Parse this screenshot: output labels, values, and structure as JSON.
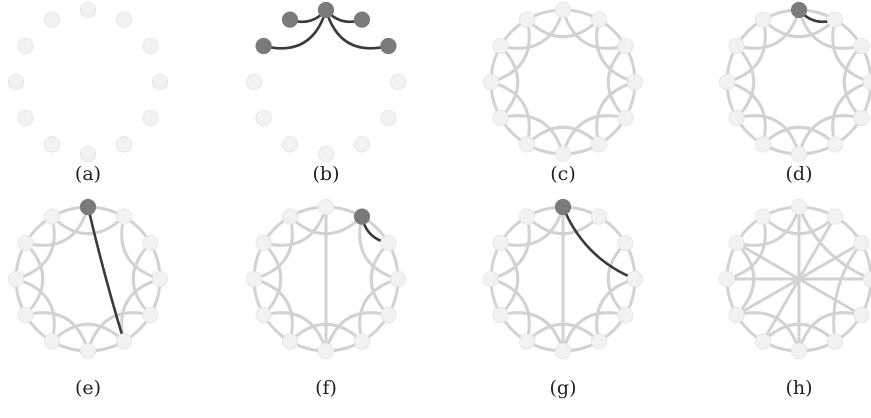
{
  "figure": {
    "node_count": 12,
    "colors": {
      "node_fill": "#f2f2f2",
      "node_stroke": "#e6e6e6",
      "highlight_node": "#7a7a7a",
      "gray_edge": "#d2d2d2",
      "dark_edge": "#3a3a3a"
    },
    "panels": [
      {
        "id": "a",
        "label": "(a)",
        "gray_rim": false,
        "gray_chords": [],
        "dark_edges": [],
        "highlight_nodes": []
      },
      {
        "id": "b",
        "label": "(b)",
        "gray_rim": false,
        "gray_chords": [],
        "dark_edges": [
          [
            0,
            1
          ],
          [
            0,
            11
          ],
          [
            0,
            2
          ],
          [
            0,
            10
          ]
        ],
        "highlight_nodes": [
          0,
          1,
          2,
          10,
          11
        ]
      },
      {
        "id": "c",
        "label": "(c)",
        "gray_rim": true,
        "gray_chords": [
          [
            0,
            2
          ],
          [
            1,
            3
          ],
          [
            2,
            4
          ],
          [
            3,
            5
          ],
          [
            4,
            6
          ],
          [
            5,
            7
          ],
          [
            6,
            8
          ],
          [
            7,
            9
          ],
          [
            8,
            10
          ],
          [
            9,
            11
          ],
          [
            10,
            0
          ],
          [
            11,
            1
          ]
        ],
        "dark_edges": [],
        "highlight_nodes": []
      },
      {
        "id": "d",
        "label": "(d)",
        "gray_rim": true,
        "gray_chords": [
          [
            0,
            2
          ],
          [
            1,
            3
          ],
          [
            2,
            4
          ],
          [
            3,
            5
          ],
          [
            4,
            6
          ],
          [
            5,
            7
          ],
          [
            6,
            8
          ],
          [
            7,
            9
          ],
          [
            8,
            10
          ],
          [
            9,
            11
          ],
          [
            10,
            0
          ],
          [
            11,
            1
          ]
        ],
        "dark_edges": [
          [
            0,
            1
          ]
        ],
        "highlight_nodes": [
          0
        ]
      },
      {
        "id": "e",
        "label": "(e)",
        "gray_rim": true,
        "gray_chords": [
          [
            1,
            3
          ],
          [
            2,
            4
          ],
          [
            3,
            5
          ],
          [
            4,
            6
          ],
          [
            5,
            7
          ],
          [
            6,
            8
          ],
          [
            7,
            9
          ],
          [
            8,
            10
          ],
          [
            9,
            11
          ],
          [
            10,
            0
          ],
          [
            11,
            1
          ]
        ],
        "dark_edges": [
          [
            0,
            5
          ]
        ],
        "highlight_nodes": [
          0
        ]
      },
      {
        "id": "f",
        "label": "(f)",
        "gray_rim": true,
        "gray_chords": [
          [
            0,
            6
          ],
          [
            1,
            3
          ],
          [
            2,
            4
          ],
          [
            3,
            5
          ],
          [
            4,
            6
          ],
          [
            5,
            7
          ],
          [
            6,
            8
          ],
          [
            7,
            9
          ],
          [
            8,
            10
          ],
          [
            9,
            11
          ],
          [
            10,
            0
          ],
          [
            11,
            1
          ]
        ],
        "dark_edges": [
          [
            1,
            2
          ]
        ],
        "highlight_nodes": [
          1
        ]
      },
      {
        "id": "g",
        "label": "(g)",
        "gray_rim": true,
        "gray_chords": [
          [
            0,
            6
          ],
          [
            2,
            4
          ],
          [
            3,
            5
          ],
          [
            4,
            6
          ],
          [
            5,
            7
          ],
          [
            6,
            8
          ],
          [
            7,
            9
          ],
          [
            8,
            10
          ],
          [
            9,
            11
          ],
          [
            10,
            0
          ],
          [
            11,
            1
          ]
        ],
        "dark_edges": [
          [
            0,
            3
          ]
        ],
        "highlight_nodes": [
          0
        ]
      },
      {
        "id": "h",
        "label": "(h)",
        "gray_rim": true,
        "gray_chords": [
          [
            0,
            6
          ],
          [
            1,
            7
          ],
          [
            2,
            8
          ],
          [
            3,
            9
          ],
          [
            4,
            10
          ],
          [
            0,
            3
          ],
          [
            5,
            7
          ],
          [
            6,
            8
          ],
          [
            9,
            11
          ],
          [
            10,
            0
          ],
          [
            11,
            1
          ],
          [
            2,
            5
          ],
          [
            4,
            6
          ],
          [
            8,
            10
          ]
        ],
        "dark_edges": [],
        "highlight_nodes": []
      }
    ]
  }
}
